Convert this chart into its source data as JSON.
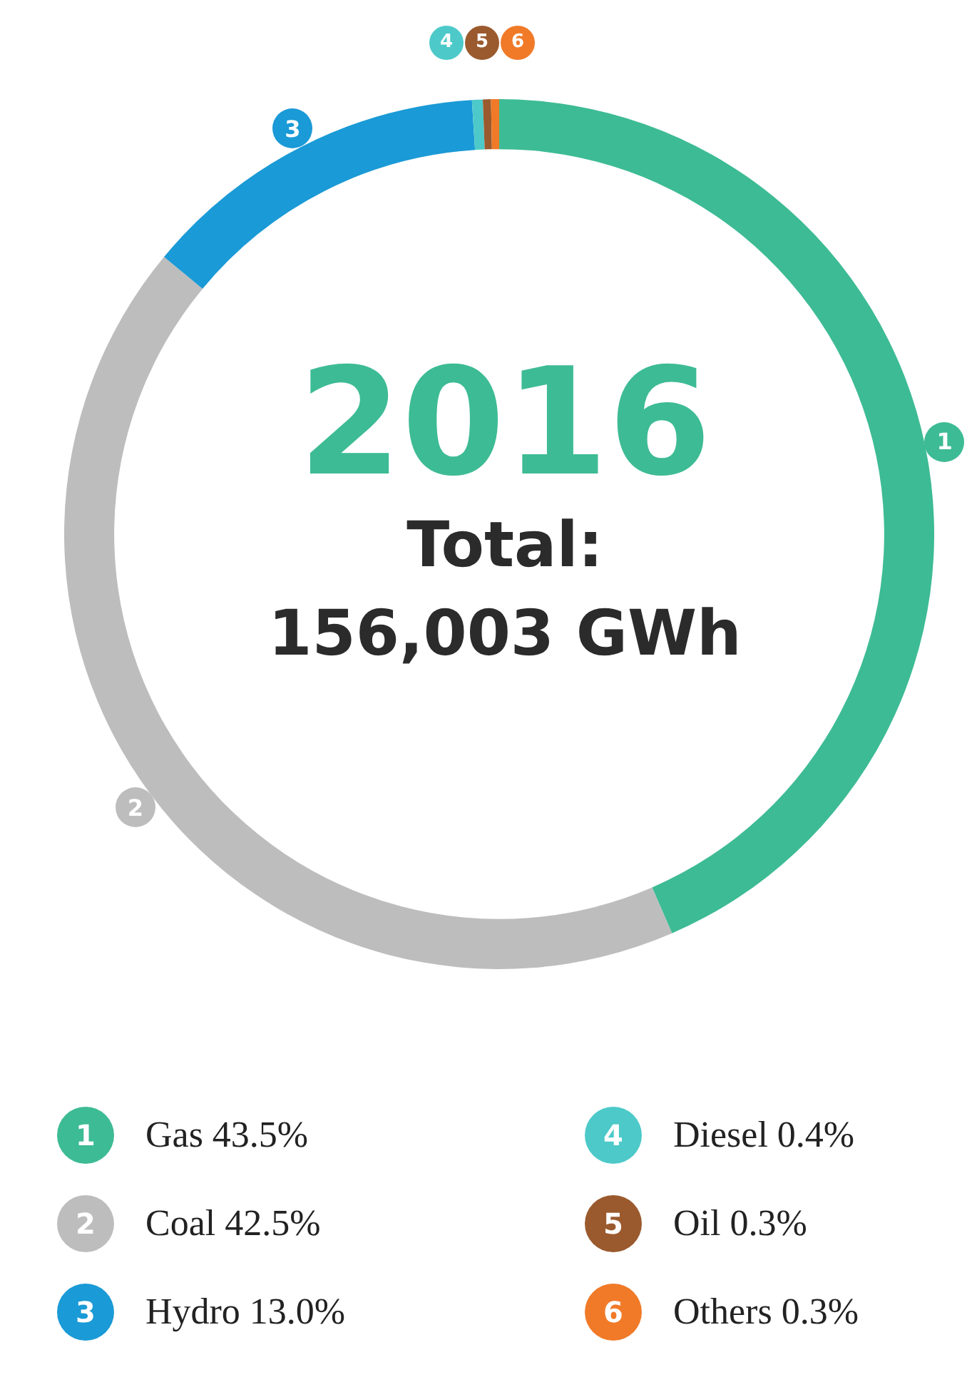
{
  "chart_data": {
    "type": "donut",
    "title": "2016",
    "annotations": [
      "Total:",
      "156,003 GWh",
      {
        "text": "1",
        "x": "Gas"
      },
      {
        "text": "2",
        "x": "Coal"
      },
      {
        "text": "3",
        "x": "Hydro"
      },
      {
        "text": "4",
        "x": "Diesel"
      },
      {
        "text": "5",
        "x": "Oil"
      },
      {
        "text": "6",
        "x": "Others"
      }
    ],
    "categories": [
      "Gas",
      "Coal",
      "Hydro",
      "Diesel",
      "Oil",
      "Others"
    ],
    "values": [
      43.5,
      42.5,
      13.0,
      0.4,
      0.3,
      0.3
    ],
    "value_labels": [
      "43.5%",
      "42.5%",
      "13.0%",
      "0.4%",
      "0.3%",
      "0.3%"
    ],
    "colors": [
      "#3dbb94",
      "#bdbdbd",
      "#1a9ad6",
      "#4dc9c9",
      "#9a5a2e",
      "#f07a28"
    ],
    "legend": "bottom"
  }
}
